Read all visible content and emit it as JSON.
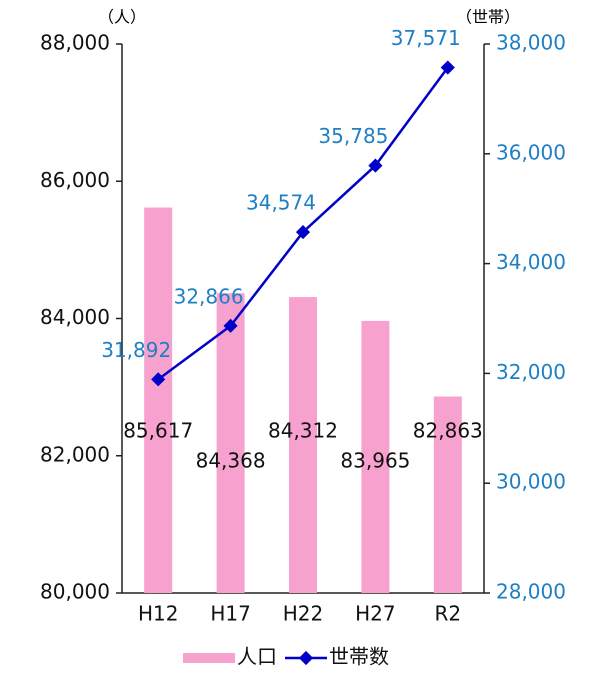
{
  "chart_data": {
    "type": "combo",
    "ylabel": "（人）",
    "y2label": "（世帯）",
    "categories": [
      "H12",
      "H17",
      "H22",
      "H27",
      "R2"
    ],
    "series": [
      {
        "name": "人口",
        "type": "bar",
        "color": "#f7a1cf",
        "label_color": "#111111",
        "values": [
          85617,
          84368,
          84312,
          83965,
          82863
        ],
        "value_labels": [
          "85,617",
          "84,368",
          "84,312",
          "83,965",
          "82,863"
        ]
      },
      {
        "name": "世帯数",
        "type": "line",
        "axis": "y2",
        "color": "#0000c8",
        "label_color": "#1f7fc4",
        "values": [
          31892,
          32866,
          34574,
          35785,
          37571
        ],
        "value_labels": [
          "31,892",
          "32,866",
          "34,574",
          "35,785",
          "37,571"
        ]
      }
    ],
    "ylim": [
      80000,
      88000
    ],
    "yticks": [
      {
        "value": 80000,
        "label": "80,000"
      },
      {
        "value": 82000,
        "label": "82,000"
      },
      {
        "value": 84000,
        "label": "84,000"
      },
      {
        "value": 86000,
        "label": "86,000"
      },
      {
        "value": 88000,
        "label": "88,000"
      }
    ],
    "y2lim": [
      28000,
      38000
    ],
    "y2ticks": [
      {
        "value": 28000,
        "label": "28,000"
      },
      {
        "value": 30000,
        "label": "30,000"
      },
      {
        "value": 32000,
        "label": "32,000"
      },
      {
        "value": 34000,
        "label": "34,000"
      },
      {
        "value": 36000,
        "label": "36,000"
      },
      {
        "value": 38000,
        "label": "38,000"
      }
    ],
    "y2_color": "#1f7fc4",
    "legend": "bottom"
  }
}
